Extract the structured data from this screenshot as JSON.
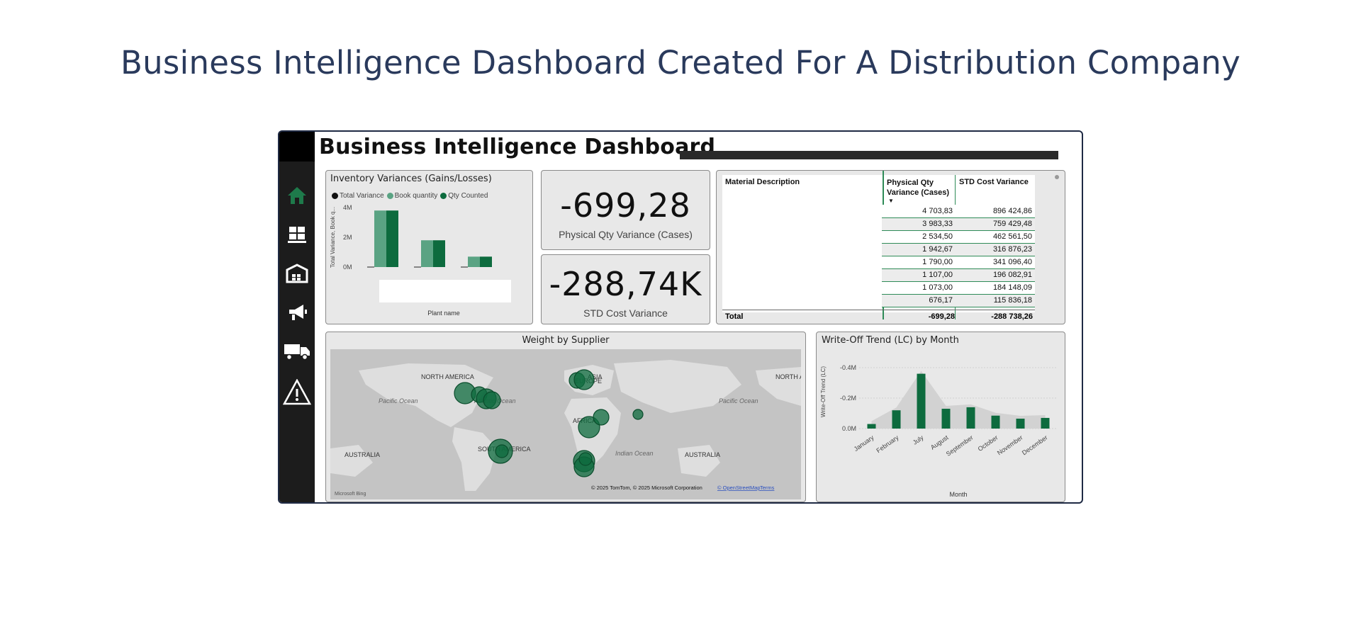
{
  "page_heading": "Business Intelligence Dashboard Created For A Distribution Company",
  "dashboard": {
    "title": "Business Intelligence Dashboard",
    "nav_icons": [
      "home-icon",
      "pallet-icon",
      "warehouse-icon",
      "megaphone-icon",
      "truck-icon",
      "warning-icon"
    ],
    "accent_color": "#1e7a4b"
  },
  "inventory_panel": {
    "title": "Inventory Variances (Gains/Losses)",
    "legend": [
      "Total Variance",
      "Book quantity",
      "Qty Counted"
    ],
    "legend_colors": [
      "#111111",
      "#5aa383",
      "#0d6b3e"
    ],
    "y_label": "Total Variance, Book q...",
    "x_label": "Plant name",
    "chart_data": {
      "type": "bar",
      "categories": [
        "",
        "",
        ""
      ],
      "ylim": [
        0,
        4000000
      ],
      "y_ticks": [
        "4M",
        "2M",
        "0M"
      ],
      "series": [
        {
          "name": "Total Variance",
          "values": [
            0,
            0,
            0
          ]
        },
        {
          "name": "Book quantity",
          "values": [
            3800000,
            1800000,
            700000
          ]
        },
        {
          "name": "Qty Counted",
          "values": [
            3800000,
            1800000,
            700000
          ]
        }
      ]
    }
  },
  "kpi_qty": {
    "value": "-699,28",
    "label": "Physical Qty Variance (Cases)"
  },
  "kpi_cost": {
    "value": "-288,74K",
    "label": "STD Cost Variance"
  },
  "variance_table": {
    "headers": [
      "Material Description",
      "Physical Qty Variance (Cases)",
      "STD Cost Variance"
    ],
    "rows": [
      [
        "4 703,83",
        "896 424,86"
      ],
      [
        "3 983,33",
        "759 429,48"
      ],
      [
        "2 534,50",
        "462 561,50"
      ],
      [
        "1 942,67",
        "316 876,23"
      ],
      [
        "1 790,00",
        "341 096,40"
      ],
      [
        "1 107,00",
        "196 082,91"
      ],
      [
        "1 073,00",
        "184 148,09"
      ],
      [
        "676,17",
        "115 836,18"
      ]
    ],
    "total_label": "Total",
    "total_qty": "-699,28",
    "total_cost": "-288 738,26"
  },
  "map_panel": {
    "title": "Weight by Supplier",
    "labels": [
      "NORTH AMERICA",
      "ASIA",
      "NORTH A",
      "Pacific Ocean",
      "Atlantic Ocean",
      "Pacific Ocean",
      "AFRICA",
      "AUSTRALIA",
      "SOUTH AMERICA",
      "Indian Ocean",
      "AUSTRALIA",
      "EUROPE"
    ],
    "attribution": "© 2025 TomTom, © 2025 Microsoft Corporation",
    "osm_link": "© OpenStreetMap",
    "terms_link": "Terms",
    "logo": "Microsoft Bing"
  },
  "writeoff_panel": {
    "title": "Write-Off Trend (LC) by Month",
    "y_label": "Write-Off Trend (LC)",
    "x_label": "Month",
    "chart_data": {
      "type": "bar",
      "categories": [
        "January",
        "February",
        "July",
        "August",
        "September",
        "October",
        "November",
        "December"
      ],
      "values": [
        30000,
        120000,
        360000,
        130000,
        140000,
        85000,
        65000,
        70000
      ],
      "y_ticks": [
        "-0.4M",
        "-0.2M",
        "0.0M"
      ],
      "ylim": [
        0,
        400000
      ]
    }
  }
}
